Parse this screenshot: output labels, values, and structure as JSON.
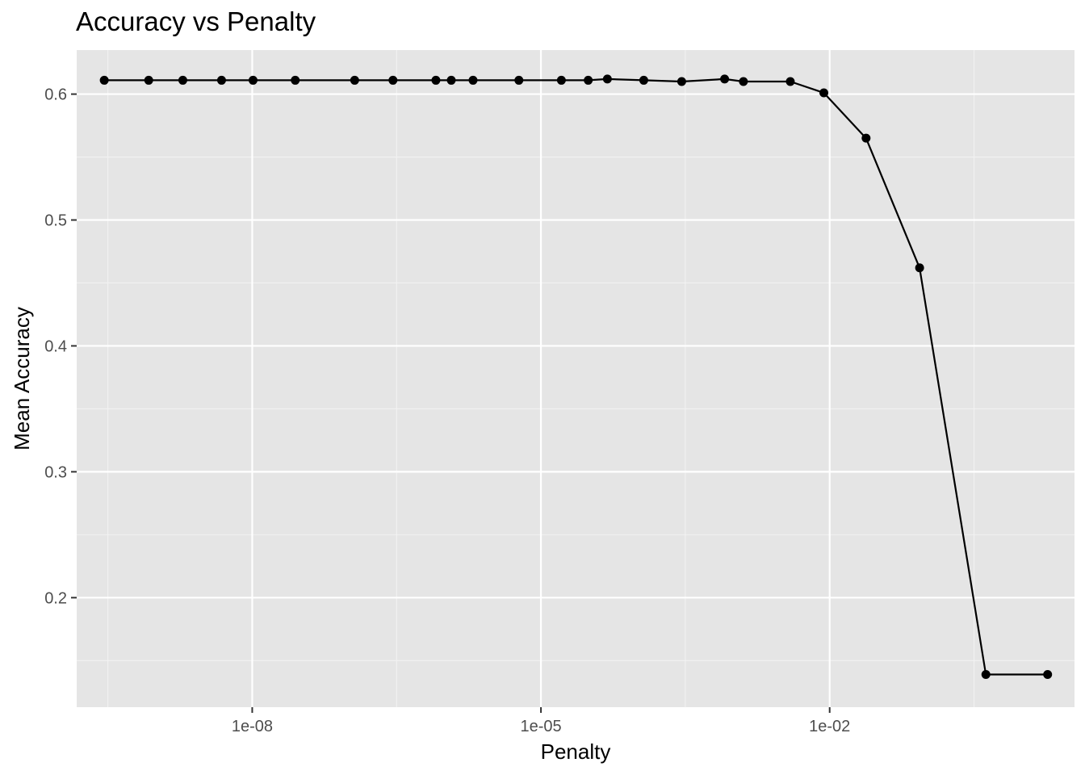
{
  "chart_data": {
    "type": "line",
    "title": "Accuracy vs Penalty",
    "xlabel": "Penalty",
    "ylabel": "Mean Accuracy",
    "x_scale": "log10",
    "x_ticks": [
      {
        "value": 1e-08,
        "label": "1e-08"
      },
      {
        "value": 1e-05,
        "label": "1e-05"
      },
      {
        "value": 0.01,
        "label": "1e-02"
      }
    ],
    "y_ticks": [
      {
        "value": 0.2,
        "label": "0.2"
      },
      {
        "value": 0.3,
        "label": "0.3"
      },
      {
        "value": 0.4,
        "label": "0.4"
      },
      {
        "value": 0.5,
        "label": "0.5"
      },
      {
        "value": 0.6,
        "label": "0.6"
      }
    ],
    "xlim": [
      1.5e-10,
      3.5
    ],
    "ylim": [
      0.113,
      0.635
    ],
    "grid": true,
    "series": [
      {
        "color": "#000000",
        "points": [
          {
            "x": 2.9e-10,
            "y": 0.611
          },
          {
            "x": 8.4e-10,
            "y": 0.611
          },
          {
            "x": 1.9e-09,
            "y": 0.611
          },
          {
            "x": 4.8e-09,
            "y": 0.611
          },
          {
            "x": 1.02e-08,
            "y": 0.611
          },
          {
            "x": 2.8e-08,
            "y": 0.611
          },
          {
            "x": 1.16e-07,
            "y": 0.611
          },
          {
            "x": 2.9e-07,
            "y": 0.611
          },
          {
            "x": 8.1e-07,
            "y": 0.611
          },
          {
            "x": 1.17e-06,
            "y": 0.611
          },
          {
            "x": 1.97e-06,
            "y": 0.611
          },
          {
            "x": 5.9e-06,
            "y": 0.611
          },
          {
            "x": 1.63e-05,
            "y": 0.611
          },
          {
            "x": 3.1e-05,
            "y": 0.611
          },
          {
            "x": 4.9e-05,
            "y": 0.612
          },
          {
            "x": 0.000117,
            "y": 0.611
          },
          {
            "x": 0.00029,
            "y": 0.61
          },
          {
            "x": 0.00081,
            "y": 0.612
          },
          {
            "x": 0.00127,
            "y": 0.61
          },
          {
            "x": 0.0039,
            "y": 0.61
          },
          {
            "x": 0.0087,
            "y": 0.601
          },
          {
            "x": 0.0239,
            "y": 0.565
          },
          {
            "x": 0.086,
            "y": 0.462
          },
          {
            "x": 0.42,
            "y": 0.139
          },
          {
            "x": 1.84,
            "y": 0.139
          }
        ]
      }
    ]
  }
}
